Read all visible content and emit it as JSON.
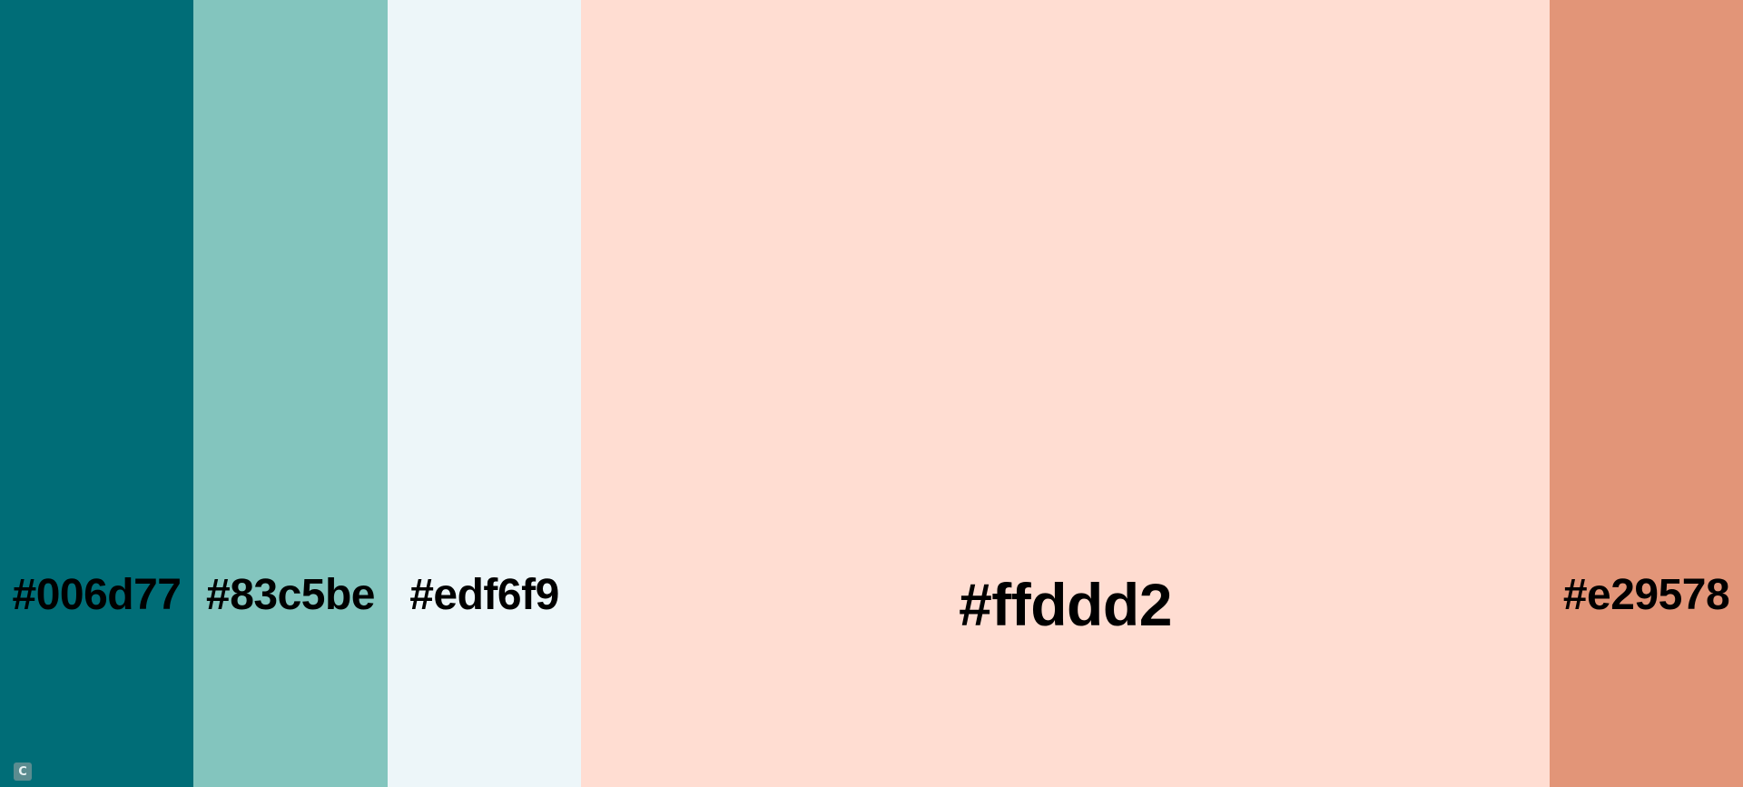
{
  "palette": {
    "swatches": [
      {
        "color": "#006d77",
        "label": "#006d77"
      },
      {
        "color": "#83c5be",
        "label": "#83c5be"
      },
      {
        "color": "#edf6f9",
        "label": "#edf6f9"
      },
      {
        "color": "#ffddd2",
        "label": "#ffddd2"
      },
      {
        "color": "#e29578",
        "label": "#e29578"
      }
    ]
  },
  "badge": {
    "glyph": "C",
    "color": "#5b8c90"
  }
}
